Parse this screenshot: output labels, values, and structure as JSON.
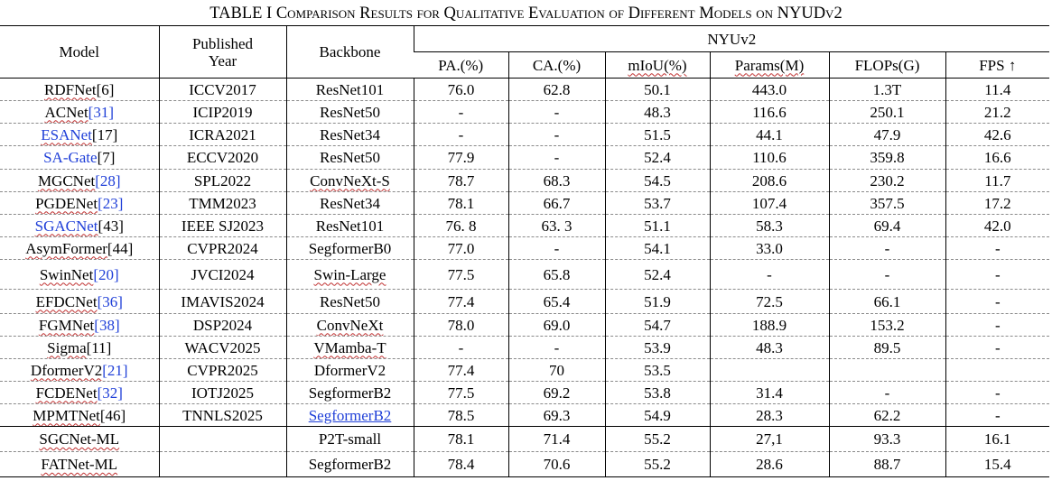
{
  "caption": "TABLE I Comparison Results for Qualitative Evaluation of Different Models on NYUDv2",
  "headers": {
    "model": "Model",
    "year_l1": "Published",
    "year_l2": "Year",
    "backbone": "Backbone",
    "group": "NYUv2",
    "metrics": [
      "PA.(%)",
      "CA.(%)",
      "mIoU(%)",
      "Params(M)",
      "FLOPs(G)",
      "FPS ↑"
    ]
  },
  "rows": [
    {
      "name": "RDFNet",
      "ref": "[6]",
      "year": "ICCV2017",
      "backbone": "ResNet101",
      "pa": "76.0",
      "ca": "62.8",
      "miou": "50.1",
      "params": "443.0",
      "flops": "1.3T",
      "fps": "11.4"
    },
    {
      "name": "ACNet",
      "ref": "[31]",
      "year": "ICIP2019",
      "backbone": "ResNet50",
      "pa": "-",
      "ca": "-",
      "miou": "48.3",
      "params": "116.6",
      "flops": "250.1",
      "fps": "21.2"
    },
    {
      "name": "ESANet",
      "ref": "[17]",
      "year": "ICRA2021",
      "backbone": "ResNet34",
      "pa": "-",
      "ca": "-",
      "miou": "51.5",
      "params": "44.1",
      "flops": "47.9",
      "fps": "42.6"
    },
    {
      "name": "SA-Gate",
      "ref": "[7]",
      "year": "ECCV2020",
      "backbone": "ResNet50",
      "pa": "77.9",
      "ca": "-",
      "miou": "52.4",
      "params": "110.6",
      "flops": "359.8",
      "fps": "16.6"
    },
    {
      "name": "MGCNet",
      "ref": "[28]",
      "year": "SPL2022",
      "backbone": "ConvNeXt-S",
      "pa": "78.7",
      "ca": "68.3",
      "miou": "54.5",
      "params": "208.6",
      "flops": "230.2",
      "fps": "11.7"
    },
    {
      "name": "PGDENet",
      "ref": "[23]",
      "year": "TMM2023",
      "backbone": "ResNet34",
      "pa": "78.1",
      "ca": "66.7",
      "miou": "53.7",
      "params": "107.4",
      "flops": "357.5",
      "fps": "17.2"
    },
    {
      "name": "SGACNet",
      "ref": "[43]",
      "year": "IEEE SJ2023",
      "backbone": "ResNet101",
      "pa": "76. 8",
      "ca": "63. 3",
      "miou": "51.1",
      "params": "58.3",
      "flops": "69.4",
      "fps": "42.0"
    },
    {
      "name": "AsymFormer",
      "ref": "[44]",
      "year": "CVPR2024",
      "backbone": "SegformerB0",
      "pa": "77.0",
      "ca": "-",
      "miou": "54.1",
      "params": "33.0",
      "flops": "-",
      "fps": "-"
    },
    {
      "name": "SwinNet",
      "ref": "[20]",
      "year": "JVCI2024",
      "backbone": "Swin-Large",
      "pa": "77.5",
      "ca": "65.8",
      "miou": "52.4",
      "params": "-",
      "flops": "-",
      "fps": "-"
    },
    {
      "name": "EFDCNet",
      "ref": "[36]",
      "year": "IMAVIS2024",
      "backbone": "ResNet50",
      "pa": "77.4",
      "ca": "65.4",
      "miou": "51.9",
      "params": "72.5",
      "flops": "66.1",
      "fps": "-"
    },
    {
      "name": "FGMNet",
      "ref": "[38]",
      "year": "DSP2024",
      "backbone": "ConvNeXt",
      "pa": "78.0",
      "ca": "69.0",
      "miou": "54.7",
      "params": "188.9",
      "flops": "153.2",
      "fps": "-"
    },
    {
      "name": "Sigma",
      "ref": "[11]",
      "year": "WACV2025",
      "backbone": "VMamba-T",
      "pa": "-",
      "ca": "-",
      "miou": "53.9",
      "params": "48.3",
      "flops": "89.5",
      "fps": "-"
    },
    {
      "name": "DformerV2",
      "ref": "[21]",
      "year": "CVPR2025",
      "backbone": "DformerV2",
      "pa": "77.4",
      "ca": "70",
      "miou": "53.5",
      "params": "",
      "flops": "",
      "fps": ""
    },
    {
      "name": "FCDENet",
      "ref": "[32]",
      "year": "IOTJ2025",
      "backbone": "SegformerB2",
      "pa": "77.5",
      "ca": "69.2",
      "miou": "53.8",
      "params": "31.4",
      "flops": "-",
      "fps": "-"
    },
    {
      "name": "MPMTNet",
      "ref": "[46]",
      "year": "TNNLS2025",
      "backbone": "SegformerB2",
      "pa": "78.5",
      "ca": "69.3",
      "miou": "54.9",
      "params": "28.3",
      "flops": "62.2",
      "fps": "-"
    },
    {
      "name": "SGCNet-ML",
      "ref": "",
      "year": "",
      "backbone": "P2T-small",
      "pa": "78.1",
      "ca": "71.4",
      "miou": "55.2",
      "params": "27,1",
      "flops": "93.3",
      "fps": "16.1"
    },
    {
      "name": "FATNet-ML",
      "ref": "",
      "year": "",
      "backbone": "SegformerB2",
      "pa": "78.4",
      "ca": "70.6",
      "miou": "55.2",
      "params": "28.6",
      "flops": "88.7",
      "fps": "15.4"
    }
  ]
}
